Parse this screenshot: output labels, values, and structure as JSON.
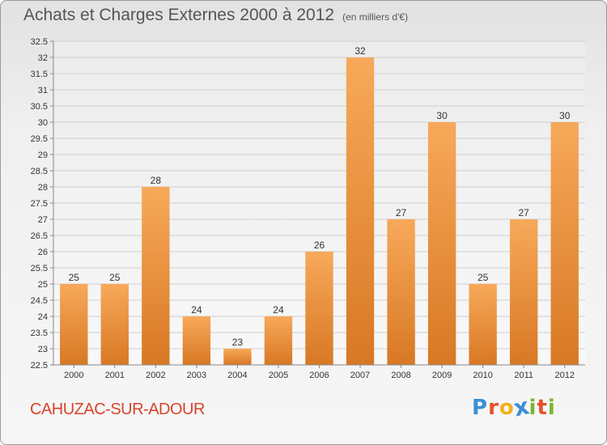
{
  "title": "Achats et Charges Externes 2000 à 2012",
  "unit": "(en milliers d'€)",
  "town": "CAHUZAC-SUR-ADOUR",
  "logo": {
    "text": "Proxiti",
    "letters": [
      {
        "ch": "P",
        "color": "#3a8fd6"
      },
      {
        "ch": "r",
        "color": "#e8502a"
      },
      {
        "ch": "o",
        "color": "#f2b11c"
      },
      {
        "ch": "x",
        "color": "#3a8fd6"
      },
      {
        "ch": "i",
        "color": "#7ab531"
      },
      {
        "ch": "t",
        "color": "#e8502a"
      },
      {
        "ch": "i",
        "color": "#7ab531"
      }
    ]
  },
  "colors": {
    "bar_light": "#f7a95a",
    "bar_dark": "#d87824",
    "grid": "#cfcfcf",
    "axis_text": "#333333"
  },
  "chart_data": {
    "type": "bar",
    "categories": [
      "2000",
      "2001",
      "2002",
      "2003",
      "2004",
      "2005",
      "2006",
      "2007",
      "2008",
      "2009",
      "2010",
      "2011",
      "2012"
    ],
    "values": [
      25,
      25,
      28,
      24,
      23,
      24,
      26,
      32,
      27,
      30,
      25,
      27,
      30
    ],
    "data_labels": [
      "25",
      "25",
      "28",
      "24",
      "23",
      "24",
      "26",
      "32",
      "27",
      "30",
      "25",
      "27",
      "30"
    ],
    "ylim": [
      22.5,
      32.5
    ],
    "ytick_step": 0.5,
    "yticks": [
      "22.5",
      "23",
      "23.5",
      "24",
      "24.5",
      "25",
      "25.5",
      "26",
      "26.5",
      "27",
      "27.5",
      "28",
      "28.5",
      "29",
      "29.5",
      "30",
      "30.5",
      "31",
      "31.5",
      "32",
      "32.5"
    ],
    "grid": true
  }
}
